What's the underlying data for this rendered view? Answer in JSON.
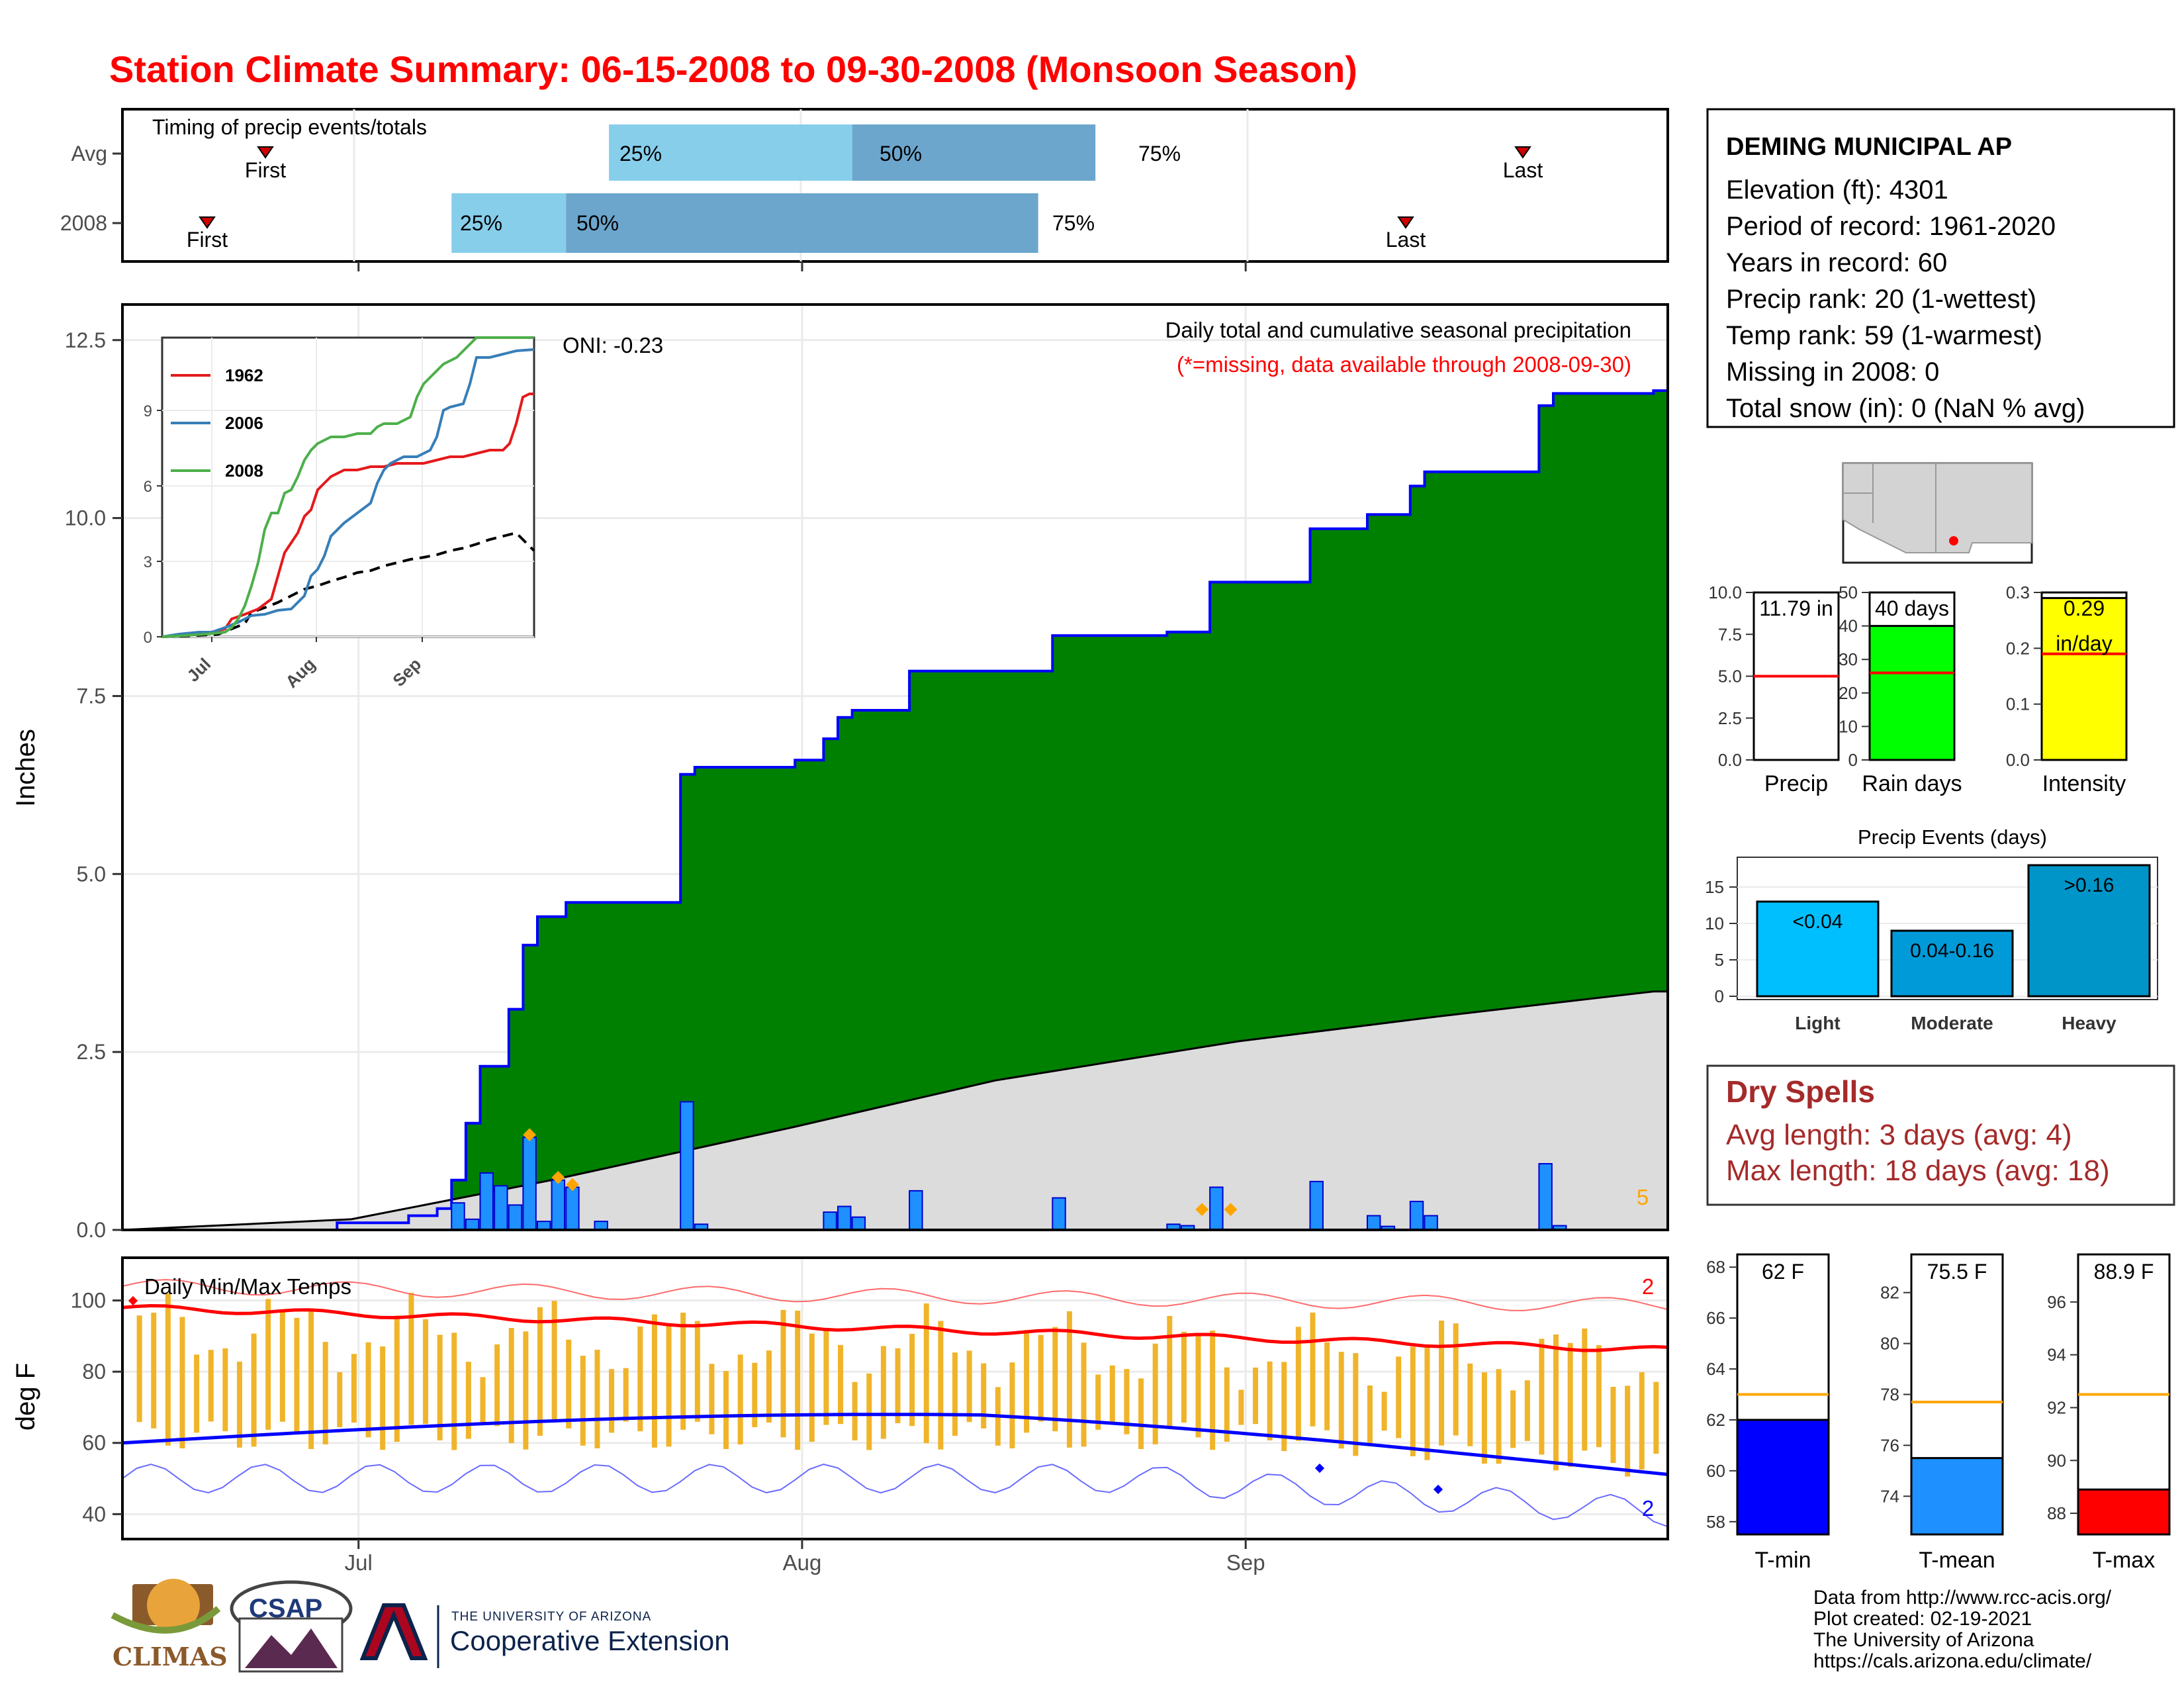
{
  "title": "Station Climate Summary: 06-15-2008 to 09-30-2008 (Monsoon Season)",
  "timing_panel": {
    "label": "Timing of precip events/totals",
    "rows": [
      {
        "name": "Avg",
        "first_label": "First",
        "last_label": "Last",
        "first_day": 6,
        "last_day": 105,
        "p25_day": 34,
        "p50_day": 51,
        "p75_day": 68,
        "p25_label": "25%",
        "p50_label": "50%",
        "p75_label": "75%"
      },
      {
        "name": "2008",
        "first_label": "First",
        "last_label": "Last",
        "first_day": 2,
        "last_day": 96,
        "p25_day": 23,
        "p50_day": 31,
        "p75_day": 64,
        "p25_label": "25%",
        "p50_label": "50%",
        "p75_label": "75%"
      }
    ]
  },
  "month_labels": [
    "Jul",
    "Aug",
    "Sep"
  ],
  "precip_panel": {
    "ylabel": "Inches",
    "yticks": [
      "0.0",
      "2.5",
      "5.0",
      "7.5",
      "10.0",
      "12.5"
    ],
    "oni_label": "ONI: -0.23",
    "subtitle": "Daily total and cumulative seasonal precipitation",
    "missing_note": "(*=missing, data available through 2008-09-30)",
    "corner_count": "5"
  },
  "inset": {
    "yticks": [
      "0",
      "3",
      "6",
      "9"
    ],
    "xticks": [
      "Jul",
      "Aug",
      "Sep"
    ],
    "legend": [
      {
        "name": "1962",
        "color": "#e41a1c"
      },
      {
        "name": "2006",
        "color": "#377eb8"
      },
      {
        "name": "2008",
        "color": "#4daf4a"
      }
    ]
  },
  "temp_panel": {
    "ylabel": "deg F",
    "label": "Daily Min/Max Temps",
    "yticks": [
      "40",
      "60",
      "80",
      "100"
    ],
    "count_high": "2",
    "count_low": "2"
  },
  "station": {
    "name": "DEMING MUNICIPAL AP",
    "elevation": "Elevation (ft): 4301",
    "period": "Period of record: 1961-2020",
    "years": "Years in record: 60",
    "precip_rank": "Precip rank: 20 (1-wettest)",
    "temp_rank": "Temp rank: 59 (1-warmest)",
    "missing": "Missing in 2008: 0",
    "snow": "Total snow (in): 0 (NaN % avg)"
  },
  "summary_bars": [
    {
      "label": "Precip",
      "value_text": "11.79 in",
      "value": 11.79,
      "avg": 5.0,
      "ymax": 10,
      "yticks": [
        "0.0",
        "2.5",
        "5.0",
        "7.5",
        "10.0"
      ],
      "color": "#ffffff"
    },
    {
      "label": "Rain days",
      "value_text": "40 days",
      "value": 40,
      "avg": 26,
      "ymax": 50,
      "yticks": [
        "0",
        "10",
        "20",
        "30",
        "40",
        "50"
      ],
      "color": "#00ff00"
    },
    {
      "label": "Intensity",
      "value_text": "0.29",
      "value_text2": "in/day",
      "value": 0.29,
      "avg": 0.19,
      "ymax": 0.3,
      "yticks": [
        "0.0",
        "0.1",
        "0.2",
        "0.3"
      ],
      "color": "#ffff00"
    }
  ],
  "precip_events": {
    "title": "Precip Events (days)",
    "yticks": [
      "0",
      "5",
      "10",
      "15"
    ],
    "bars": [
      {
        "label": "Light",
        "bar_text": "<0.04",
        "value": 13,
        "color": "#00bfff"
      },
      {
        "label": "Moderate",
        "bar_text": "0.04-0.16",
        "value": 9,
        "color": "#009ad8"
      },
      {
        "label": "Heavy",
        "bar_text": ">0.16",
        "value": 18,
        "color": "#0095c8"
      }
    ]
  },
  "dry_spells": {
    "title": "Dry Spells",
    "avg_length": "Avg length: 3 days (avg: 4)",
    "max_length": "Max length: 18 days (avg: 18)"
  },
  "temp_bars": [
    {
      "label": "T-min",
      "value_text": "62 F",
      "value": 62,
      "avg": 63,
      "ymin": 57.5,
      "ymax": 68.5,
      "yticks": [
        "58",
        "60",
        "62",
        "64",
        "66",
        "68"
      ],
      "color": "#0000ff"
    },
    {
      "label": "T-mean",
      "value_text": "75.5 F",
      "value": 75.5,
      "avg": 77.7,
      "ymin": 72.5,
      "ymax": 83.5,
      "yticks": [
        "74",
        "76",
        "78",
        "80",
        "82"
      ],
      "color": "#1e90ff"
    },
    {
      "label": "T-max",
      "value_text": "88.9 F",
      "value": 88.9,
      "avg": 92.5,
      "ymin": 87.2,
      "ymax": 97.8,
      "yticks": [
        "88",
        "90",
        "92",
        "94",
        "96"
      ],
      "color": "#ff0000"
    }
  ],
  "credits": {
    "line1": "Data from http://www.rcc-acis.org/",
    "line2": "Plot created: 02-19-2021",
    "line3": "The University of Arizona",
    "line4": "https://cals.arizona.edu/climate/"
  },
  "logos": {
    "climas": "CLIMAS",
    "csap": "CSAP",
    "ua_line1": "THE UNIVERSITY OF ARIZONA",
    "ua_line2": "Cooperative Extension"
  },
  "chart_data": {
    "type": "bar",
    "x_start": "2008-06-15",
    "x_end": "2008-09-30",
    "daily_precip": [
      {
        "date": "2008-07-08",
        "value": 0.38
      },
      {
        "date": "2008-07-09",
        "value": 0.15
      },
      {
        "date": "2008-07-10",
        "value": 0.8
      },
      {
        "date": "2008-07-11",
        "value": 0.62
      },
      {
        "date": "2008-07-12",
        "value": 0.35
      },
      {
        "date": "2008-07-13",
        "value": 1.3
      },
      {
        "date": "2008-07-14",
        "value": 0.12
      },
      {
        "date": "2008-07-15",
        "value": 0.7
      },
      {
        "date": "2008-07-16",
        "value": 0.6
      },
      {
        "date": "2008-07-18",
        "value": 0.12
      },
      {
        "date": "2008-07-24",
        "value": 1.8
      },
      {
        "date": "2008-07-25",
        "value": 0.08
      },
      {
        "date": "2008-08-03",
        "value": 0.25
      },
      {
        "date": "2008-08-04",
        "value": 0.33
      },
      {
        "date": "2008-08-05",
        "value": 0.18
      },
      {
        "date": "2008-08-09",
        "value": 0.55
      },
      {
        "date": "2008-08-19",
        "value": 0.45
      },
      {
        "date": "2008-08-27",
        "value": 0.08
      },
      {
        "date": "2008-08-28",
        "value": 0.06
      },
      {
        "date": "2008-08-30",
        "value": 0.6
      },
      {
        "date": "2008-09-06",
        "value": 0.68
      },
      {
        "date": "2008-09-10",
        "value": 0.2
      },
      {
        "date": "2008-09-11",
        "value": 0.05
      },
      {
        "date": "2008-09-13",
        "value": 0.4
      },
      {
        "date": "2008-09-14",
        "value": 0.2
      },
      {
        "date": "2008-09-22",
        "value": 0.93
      },
      {
        "date": "2008-09-23",
        "value": 0.06
      }
    ],
    "cumulative_2008": [
      {
        "date": "2008-06-15",
        "value": 0.0
      },
      {
        "date": "2008-06-30",
        "value": 0.1
      },
      {
        "date": "2008-07-05",
        "value": 0.2
      },
      {
        "date": "2008-07-07",
        "value": 0.3
      },
      {
        "date": "2008-07-08",
        "value": 0.7
      },
      {
        "date": "2008-07-09",
        "value": 1.5
      },
      {
        "date": "2008-07-10",
        "value": 2.3
      },
      {
        "date": "2008-07-12",
        "value": 3.1
      },
      {
        "date": "2008-07-13",
        "value": 4.0
      },
      {
        "date": "2008-07-14",
        "value": 4.4
      },
      {
        "date": "2008-07-16",
        "value": 4.6
      },
      {
        "date": "2008-07-24",
        "value": 6.4
      },
      {
        "date": "2008-07-25",
        "value": 6.5
      },
      {
        "date": "2008-08-01",
        "value": 6.6
      },
      {
        "date": "2008-08-03",
        "value": 6.9
      },
      {
        "date": "2008-08-04",
        "value": 7.2
      },
      {
        "date": "2008-08-05",
        "value": 7.3
      },
      {
        "date": "2008-08-09",
        "value": 7.85
      },
      {
        "date": "2008-08-19",
        "value": 8.35
      },
      {
        "date": "2008-08-27",
        "value": 8.4
      },
      {
        "date": "2008-08-30",
        "value": 9.1
      },
      {
        "date": "2008-09-06",
        "value": 9.85
      },
      {
        "date": "2008-09-10",
        "value": 10.05
      },
      {
        "date": "2008-09-13",
        "value": 10.45
      },
      {
        "date": "2008-09-14",
        "value": 10.65
      },
      {
        "date": "2008-09-22",
        "value": 11.58
      },
      {
        "date": "2008-09-23",
        "value": 11.75
      },
      {
        "date": "2008-09-30",
        "value": 11.79
      }
    ],
    "cumulative_avg": [
      {
        "date": "2008-06-15",
        "value": 0.0
      },
      {
        "date": "2008-07-01",
        "value": 0.15
      },
      {
        "date": "2008-07-15",
        "value": 0.7
      },
      {
        "date": "2008-08-01",
        "value": 1.45
      },
      {
        "date": "2008-08-15",
        "value": 2.1
      },
      {
        "date": "2008-09-01",
        "value": 2.65
      },
      {
        "date": "2008-09-15",
        "value": 3.0
      },
      {
        "date": "2008-09-30",
        "value": 3.35
      }
    ],
    "ylim": [
      0,
      13
    ]
  }
}
